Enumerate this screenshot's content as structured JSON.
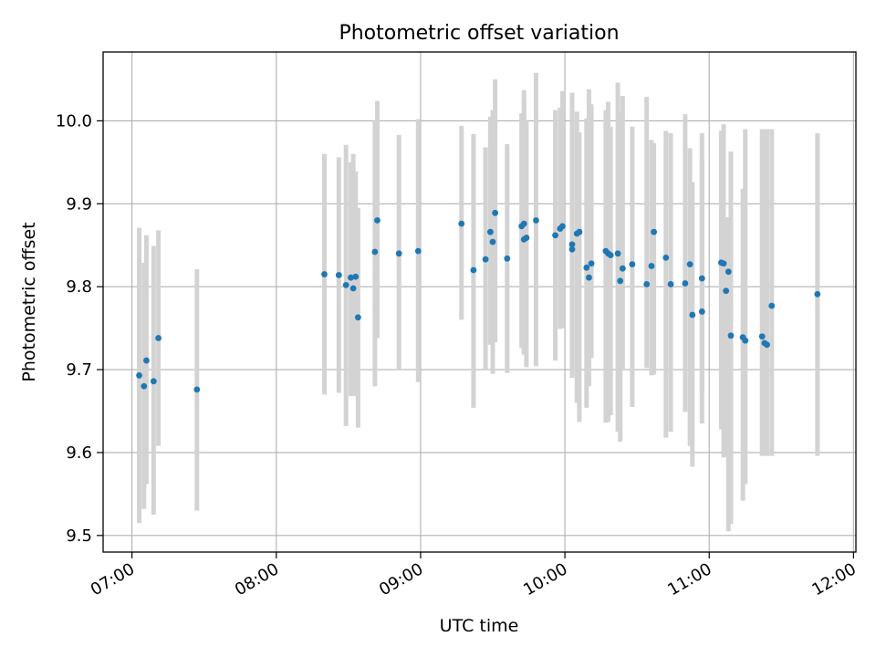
{
  "chart_data": {
    "type": "scatter",
    "title": "Photometric offset variation",
    "xlabel": "UTC time",
    "ylabel": "Photometric offset",
    "xlim": [
      "06:48",
      "12:01"
    ],
    "ylim": [
      9.48,
      10.083
    ],
    "x_ticks": [
      "07:00",
      "08:00",
      "09:00",
      "10:00",
      "11:00",
      "12:00"
    ],
    "y_ticks": [
      9.5,
      9.6,
      9.7,
      9.8,
      9.9,
      10.0
    ],
    "y_tick_labels": [
      "9.5",
      "9.6",
      "9.7",
      "9.8",
      "9.9",
      "10.0"
    ],
    "grid": true,
    "colors": {
      "points": "#1f77b4",
      "errorbars": "#d3d3d3",
      "grid": "#b0b0b0"
    },
    "series": [
      {
        "x": [
          "07:03",
          "07:05",
          "07:06",
          "07:09",
          "07:11",
          "07:27",
          "08:20",
          "08:26",
          "08:29",
          "08:31",
          "08:32",
          "08:33",
          "08:34",
          "08:41",
          "08:42",
          "08:51",
          "08:59",
          "09:17",
          "09:22",
          "09:27",
          "09:29",
          "09:30",
          "09:31",
          "09:36",
          "09:42",
          "09:43",
          "09:43",
          "09:44",
          "09:48",
          "09:56",
          "09:58",
          "09:59",
          "10:03",
          "10:03",
          "10:05",
          "10:06",
          "10:09",
          "10:10",
          "10:11",
          "10:17",
          "10:18",
          "10:19",
          "10:22",
          "10:23",
          "10:24",
          "10:28",
          "10:34",
          "10:36",
          "10:37",
          "10:42",
          "10:44",
          "10:50",
          "10:52",
          "10:53",
          "10:57",
          "10:57",
          "11:05",
          "11:06",
          "11:07",
          "11:08",
          "11:09",
          "11:14",
          "11:15",
          "11:22",
          "11:23",
          "11:24",
          "11:26",
          "11:45"
        ],
        "y": [
          9.693,
          9.68,
          9.711,
          9.686,
          9.738,
          9.676,
          9.815,
          9.814,
          9.802,
          9.811,
          9.798,
          9.812,
          9.763,
          9.842,
          9.88,
          9.84,
          9.843,
          9.876,
          9.82,
          9.833,
          9.866,
          9.854,
          9.889,
          9.834,
          9.873,
          9.876,
          9.857,
          9.859,
          9.88,
          9.862,
          9.87,
          9.873,
          9.851,
          9.845,
          9.864,
          9.866,
          9.823,
          9.811,
          9.828,
          9.843,
          9.84,
          9.838,
          9.84,
          9.807,
          9.822,
          9.827,
          9.803,
          9.825,
          9.866,
          9.835,
          9.803,
          9.804,
          9.827,
          9.766,
          9.77,
          9.81,
          9.829,
          9.828,
          9.795,
          9.818,
          9.741,
          9.739,
          9.735,
          9.74,
          9.732,
          9.73,
          9.777,
          9.791
        ],
        "yerr_low": [
          9.515,
          9.532,
          9.562,
          9.525,
          9.608,
          9.53,
          9.67,
          9.672,
          9.632,
          9.668,
          9.67,
          9.668,
          9.63,
          9.68,
          9.738,
          9.7,
          9.685,
          9.76,
          9.654,
          9.7,
          9.73,
          9.695,
          9.733,
          9.696,
          9.726,
          9.722,
          9.718,
          9.703,
          9.704,
          9.711,
          9.749,
          9.75,
          9.69,
          9.7,
          9.66,
          9.637,
          9.654,
          9.68,
          9.714,
          9.636,
          9.637,
          9.645,
          9.625,
          9.613,
          9.699,
          9.655,
          9.702,
          9.693,
          9.694,
          9.618,
          9.625,
          9.649,
          9.608,
          9.583,
          9.635,
          9.672,
          9.628,
          9.594,
          9.596,
          9.505,
          9.514,
          9.542,
          9.562,
          9.596,
          9.596,
          9.596,
          9.596,
          9.596
        ],
        "yerr_high": [
          9.871,
          9.829,
          9.862,
          9.849,
          9.868,
          9.821,
          9.96,
          9.956,
          9.971,
          9.95,
          9.96,
          9.939,
          9.895,
          10.0,
          10.024,
          9.983,
          10.002,
          9.994,
          9.984,
          9.968,
          10.005,
          10.013,
          10.05,
          9.972,
          10.009,
          10.025,
          10.037,
          10.0,
          10.058,
          10.013,
          10.016,
          10.036,
          10.01,
          10.034,
          10.011,
          9.986,
          10.003,
          10.038,
          10.02,
          10.013,
          10.023,
          9.993,
          10.046,
          10.012,
          10.03,
          9.993,
          10.029,
          9.977,
          9.973,
          9.988,
          9.985,
          10.008,
          9.967,
          9.926,
          9.955,
          9.985,
          9.988,
          9.996,
          9.882,
          9.884,
          9.963,
          9.918,
          9.99,
          9.99,
          9.99,
          9.99,
          9.99,
          9.985
        ]
      }
    ]
  }
}
